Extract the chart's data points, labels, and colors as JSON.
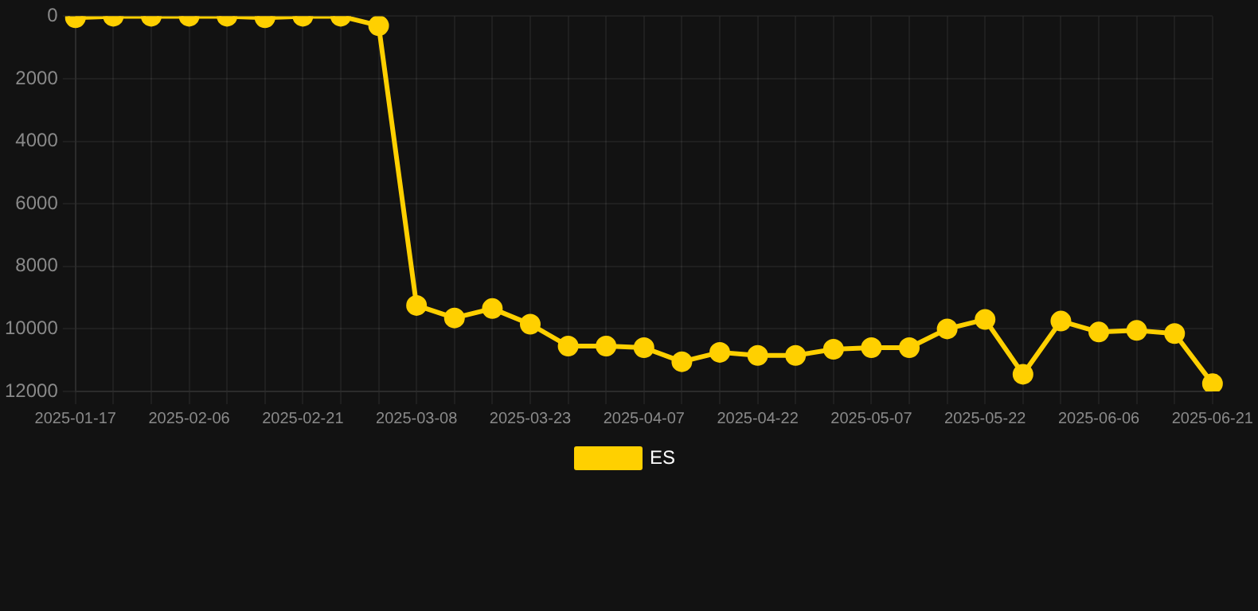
{
  "chart_data": {
    "type": "line",
    "categories": [
      "2025-01-17",
      null,
      null,
      "2025-02-06",
      null,
      null,
      "2025-02-21",
      null,
      null,
      "2025-03-08",
      null,
      null,
      "2025-03-23",
      null,
      null,
      "2025-04-07",
      null,
      null,
      "2025-04-22",
      null,
      null,
      "2025-05-07",
      null,
      null,
      "2025-05-22",
      null,
      null,
      "2025-06-06",
      null,
      null,
      "2025-06-21"
    ],
    "series": [
      {
        "name": "ES",
        "color": "#ffd000",
        "values": [
          50,
          0,
          0,
          0,
          0,
          50,
          0,
          0,
          300,
          9250,
          9650,
          9350,
          9850,
          10550,
          10550,
          10600,
          11050,
          10750,
          10850,
          10850,
          10650,
          10600,
          10600,
          10000,
          9700,
          11450,
          9750,
          10100,
          10050,
          10150,
          11750
        ]
      }
    ],
    "ylim": [
      12000,
      0
    ],
    "yticks": [
      0,
      2000,
      4000,
      6000,
      8000,
      10000,
      12000
    ],
    "grid": true,
    "legend": "bottom",
    "marker": "circle",
    "line_style": "solid"
  }
}
